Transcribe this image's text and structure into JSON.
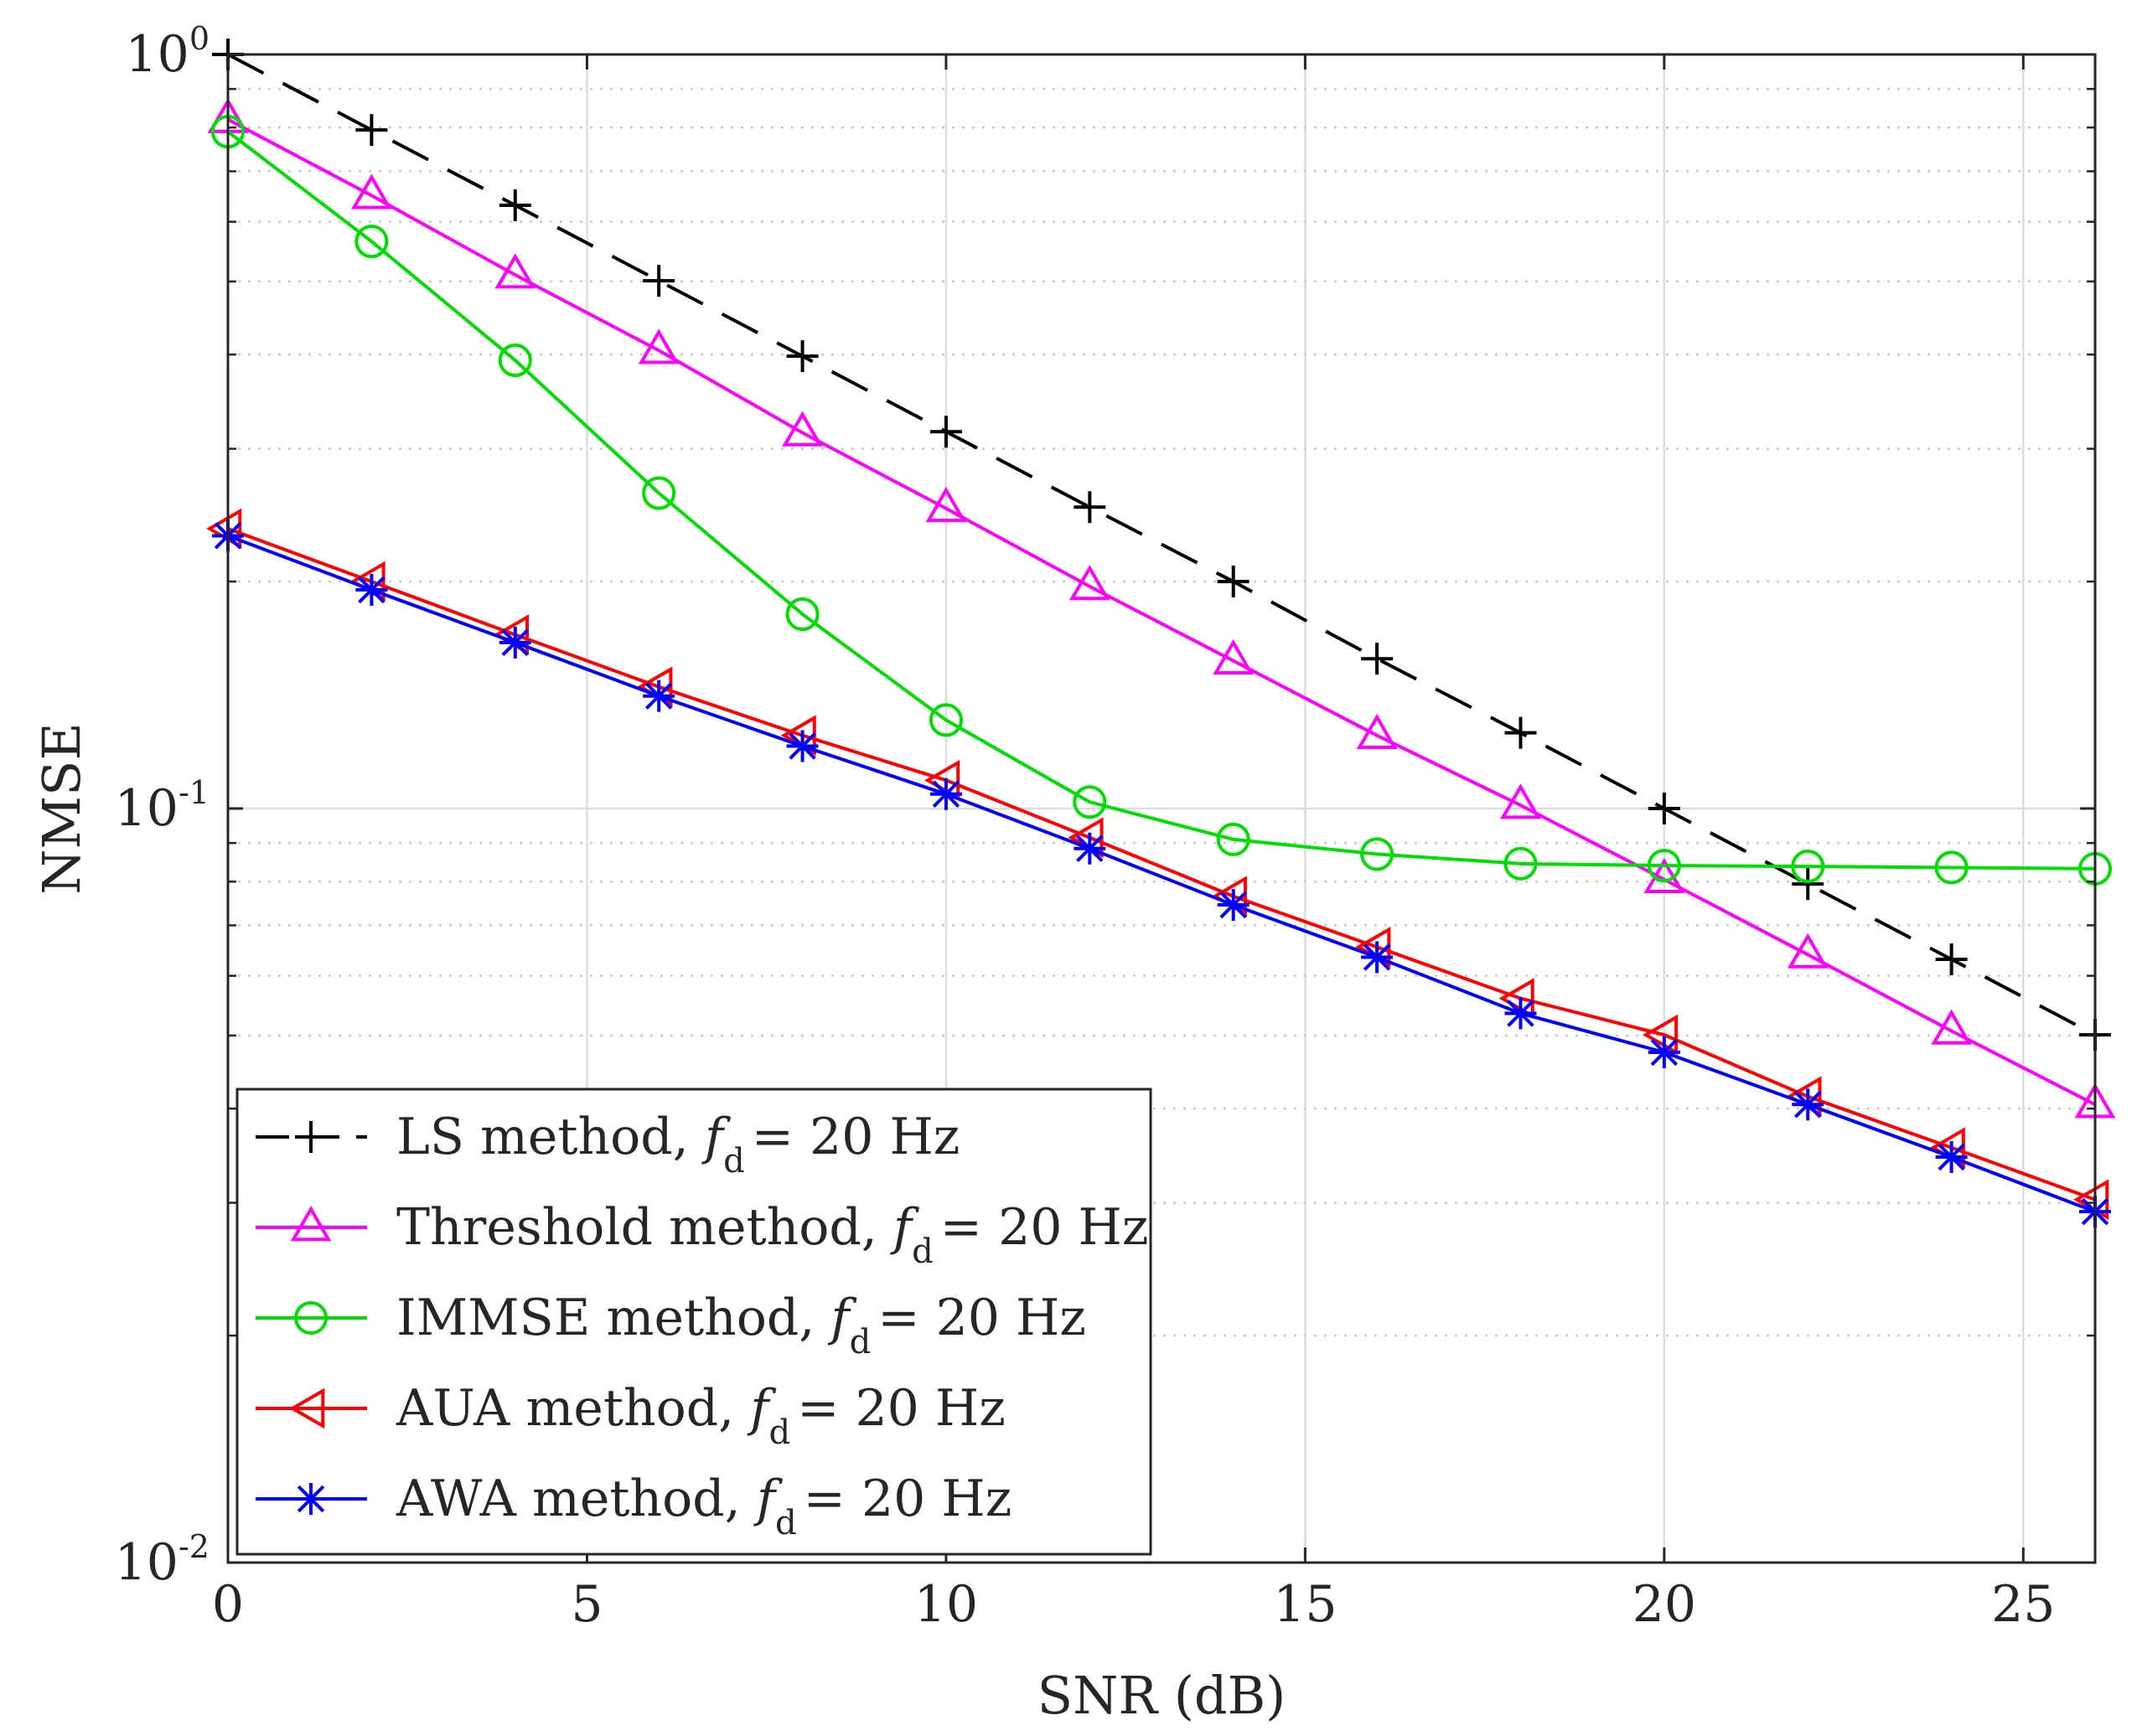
{
  "chart_data": {
    "type": "line",
    "xlabel": "SNR (dB)",
    "ylabel": "NMSE",
    "xscale": "linear",
    "yscale": "log",
    "xlim": [
      0,
      26
    ],
    "ylim": [
      0.01,
      1
    ],
    "grid": true,
    "legend_position": "bottom-left",
    "x": [
      0,
      2,
      4,
      6,
      8,
      10,
      12,
      14,
      16,
      18,
      20,
      22,
      24,
      26
    ],
    "xticks": [
      "0",
      "5",
      "10",
      "15",
      "20",
      "25"
    ],
    "yticks": [
      {
        "base": "10",
        "exp": "-2"
      },
      {
        "base": "10",
        "exp": "-1"
      },
      {
        "base": "10",
        "exp": "0"
      }
    ],
    "series": [
      {
        "name": "LS method",
        "doppler_label": "= 20 Hz",
        "color": "#000000",
        "dash": "dashed",
        "marker": "plus",
        "values": [
          1.0,
          0.794,
          0.631,
          0.501,
          0.398,
          0.316,
          0.251,
          0.2,
          0.158,
          0.126,
          0.1,
          0.0794,
          0.0631,
          0.0501
        ]
      },
      {
        "name": "Threshold method",
        "doppler_label": "= 20 Hz",
        "color": "#ff00ff",
        "dash": "solid",
        "marker": "triangle-up",
        "values": [
          0.82,
          0.65,
          0.51,
          0.405,
          0.315,
          0.25,
          0.197,
          0.157,
          0.125,
          0.101,
          0.0805,
          0.064,
          0.0507,
          0.0405
        ]
      },
      {
        "name": "IMMSE method",
        "doppler_label": "= 20 Hz",
        "color": "#00dd00",
        "dash": "solid",
        "marker": "circle",
        "values": [
          0.79,
          0.565,
          0.393,
          0.262,
          0.181,
          0.131,
          0.102,
          0.091,
          0.087,
          0.0845,
          0.084,
          0.0838,
          0.0835,
          0.0832
        ]
      },
      {
        "name": "AUA method",
        "doppler_label": "= 20 Hz",
        "color": "#ff0000",
        "dash": "solid",
        "marker": "triangle-left",
        "values": [
          0.235,
          0.2,
          0.17,
          0.145,
          0.125,
          0.109,
          0.0915,
          0.0765,
          0.0655,
          0.056,
          0.0501,
          0.0415,
          0.0355,
          0.0303
        ]
      },
      {
        "name": "AWA method",
        "doppler_label": "= 20 Hz",
        "color": "#0000ff",
        "dash": "solid",
        "marker": "asterisk",
        "values": [
          0.23,
          0.195,
          0.166,
          0.141,
          0.121,
          0.1045,
          0.0885,
          0.0745,
          0.0635,
          0.0535,
          0.0475,
          0.0405,
          0.0345,
          0.0292
        ]
      }
    ]
  }
}
